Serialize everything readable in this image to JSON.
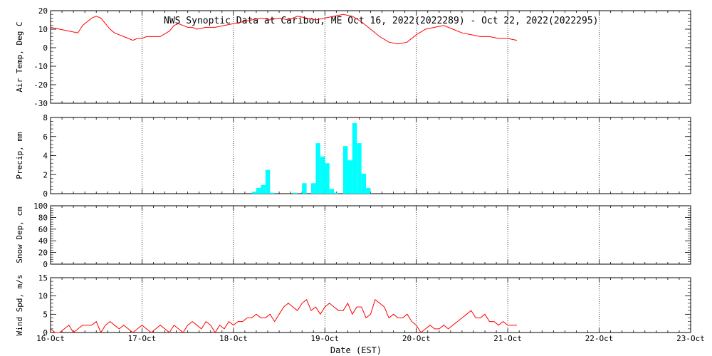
{
  "title": "NWS Synoptic Data at Caribou, ME   Oct 16, 2022(2022289) - Oct 22, 2022(2022295)",
  "xlabel": "Date (EST)",
  "x_ticks": [
    "16-Oct",
    "17-Oct",
    "18-Oct",
    "19-Oct",
    "20-Oct",
    "21-Oct",
    "22-Oct",
    "23-Oct"
  ],
  "chart_data": [
    {
      "type": "line",
      "ylabel": "Air Temp, Deg C",
      "ylim": [
        -30,
        20
      ],
      "yticks": [
        -30,
        -20,
        -10,
        0,
        10,
        20
      ],
      "color": "#ff0000",
      "x": [
        0,
        0.1,
        0.2,
        0.3,
        0.35,
        0.4,
        0.45,
        0.5,
        0.55,
        0.6,
        0.65,
        0.7,
        0.75,
        0.8,
        0.85,
        0.9,
        0.95,
        1.0,
        1.05,
        1.1,
        1.2,
        1.3,
        1.35,
        1.4,
        1.45,
        1.5,
        1.55,
        1.6,
        1.7,
        1.8,
        1.9,
        2.0,
        2.1,
        2.2,
        2.3,
        2.4,
        2.5,
        2.6,
        2.7,
        2.8,
        2.9,
        3.0,
        3.1,
        3.2,
        3.3,
        3.4,
        3.5,
        3.6,
        3.7,
        3.8,
        3.9,
        4.0,
        4.1,
        4.2,
        4.3,
        4.4,
        4.5,
        4.6,
        4.7,
        4.8,
        4.9,
        5.0,
        5.1
      ],
      "y": [
        11,
        10,
        9,
        8,
        12,
        14,
        16,
        17,
        16,
        13,
        10,
        8,
        7,
        6,
        5,
        4,
        5,
        5,
        6,
        6,
        6,
        9,
        12,
        13,
        12,
        11,
        11,
        10,
        11,
        11,
        12,
        13,
        14,
        15,
        16,
        15,
        16,
        15,
        17,
        16,
        15,
        16,
        17,
        18,
        17,
        14,
        10,
        6,
        3,
        2,
        3,
        7,
        10,
        11,
        12,
        10,
        8,
        7,
        6,
        6,
        5,
        5,
        4
      ],
      "grid": true
    },
    {
      "type": "bar",
      "ylabel": "Precip, mm",
      "ylim": [
        0,
        8
      ],
      "yticks": [
        0,
        2,
        4,
        6,
        8
      ],
      "color": "#00ffff",
      "x": [
        2.2,
        2.25,
        2.3,
        2.35,
        2.4,
        2.65,
        2.75,
        2.85,
        2.9,
        2.95,
        3.0,
        3.05,
        3.1,
        3.2,
        3.25,
        3.3,
        3.35,
        3.4,
        3.45
      ],
      "values": [
        0.2,
        0.6,
        0.9,
        2.5,
        0.1,
        0.1,
        1.1,
        1.1,
        5.3,
        3.9,
        3.2,
        0.5,
        0.1,
        5.0,
        3.5,
        7.4,
        5.3,
        2.1,
        0.6
      ],
      "grid": true
    },
    {
      "type": "line",
      "ylabel": "Snow Dep, cm",
      "ylim": [
        0,
        100
      ],
      "yticks": [
        0,
        20,
        40,
        60,
        80,
        100
      ],
      "x": [],
      "y": [],
      "grid": true
    },
    {
      "type": "line",
      "ylabel": "Wind Spd, m/s",
      "ylim": [
        0,
        15
      ],
      "yticks": [
        0,
        5,
        10,
        15
      ],
      "color": "#ff0000",
      "x": [
        0,
        0.05,
        0.1,
        0.15,
        0.2,
        0.25,
        0.3,
        0.35,
        0.4,
        0.45,
        0.5,
        0.55,
        0.6,
        0.65,
        0.7,
        0.75,
        0.8,
        0.85,
        0.9,
        0.95,
        1.0,
        1.05,
        1.1,
        1.15,
        1.2,
        1.25,
        1.3,
        1.35,
        1.4,
        1.45,
        1.5,
        1.55,
        1.6,
        1.65,
        1.7,
        1.75,
        1.8,
        1.85,
        1.9,
        1.95,
        2.0,
        2.05,
        2.1,
        2.15,
        2.2,
        2.25,
        2.3,
        2.35,
        2.4,
        2.45,
        2.5,
        2.55,
        2.6,
        2.65,
        2.7,
        2.75,
        2.8,
        2.85,
        2.9,
        2.95,
        3.0,
        3.05,
        3.1,
        3.15,
        3.2,
        3.25,
        3.3,
        3.35,
        3.4,
        3.45,
        3.5,
        3.55,
        3.6,
        3.65,
        3.7,
        3.75,
        3.8,
        3.85,
        3.9,
        3.95,
        4.0,
        4.05,
        4.1,
        4.15,
        4.2,
        4.25,
        4.3,
        4.35,
        4.4,
        4.45,
        4.5,
        4.55,
        4.6,
        4.65,
        4.7,
        4.75,
        4.8,
        4.85,
        4.9,
        4.95,
        5.0,
        5.05,
        5.1
      ],
      "y": [
        1,
        0,
        0,
        1,
        2,
        0,
        1,
        2,
        2,
        2,
        3,
        0,
        2,
        3,
        2,
        1,
        2,
        1,
        0,
        1,
        2,
        1,
        0,
        1,
        2,
        1,
        0,
        2,
        1,
        0,
        2,
        3,
        2,
        1,
        3,
        2,
        0,
        2,
        1,
        3,
        2,
        3,
        3,
        4,
        4,
        5,
        4,
        4,
        5,
        3,
        5,
        7,
        8,
        7,
        6,
        8,
        9,
        6,
        7,
        5,
        7,
        8,
        7,
        6,
        6,
        8,
        5,
        7,
        7,
        4,
        5,
        9,
        8,
        7,
        4,
        5,
        4,
        4,
        5,
        3,
        2,
        0,
        1,
        2,
        1,
        1,
        2,
        1,
        2,
        3,
        4,
        5,
        6,
        4,
        4,
        5,
        3,
        3,
        2,
        3,
        2,
        2,
        2
      ]
    }
  ]
}
